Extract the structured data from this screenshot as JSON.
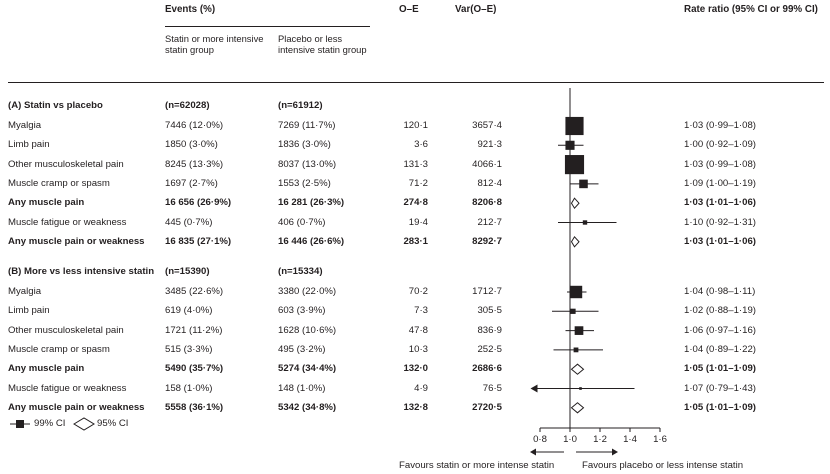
{
  "header": {
    "events": "Events (%)",
    "oe": "O–E",
    "var": "Var(O–E)",
    "rate_ratio": "Rate ratio (95% CI or 99% CI)",
    "group1": "Statin or more intensive statin group",
    "group2": "Placebo or less intensive statin group"
  },
  "legend": {
    "ci99": "99% CI",
    "ci95": "95% CI"
  },
  "chart_data": {
    "type": "forest",
    "x_axis": {
      "ticks": [
        "0·8",
        "1·0",
        "1·2",
        "1·4",
        "1·6"
      ],
      "tick_values": [
        0.8,
        1.0,
        1.2,
        1.4,
        1.6
      ],
      "range": [
        0.8,
        1.6
      ],
      "reference": 1.0
    },
    "favours_left": "Favours statin or more intense statin",
    "favours_right": "Favours placebo or less intense statin",
    "sections": [
      {
        "title": "(A) Statin vs placebo",
        "n1": "(n=62028)",
        "n2": "(n=61912)",
        "rows": [
          {
            "label": "Myalgia",
            "ev1": "7446 (12·0%)",
            "ev2": "7269 (11·7%)",
            "oe": "120·1",
            "var": "3657·4",
            "rr_text": "1·03 (0·99–1·08)",
            "rr": 1.03,
            "lo": 0.99,
            "hi": 1.08,
            "bold": false,
            "marker": "square",
            "weight": 3657.4
          },
          {
            "label": "Limb pain",
            "ev1": "1850 (3·0%)",
            "ev2": "1836 (3·0%)",
            "oe": "3·6",
            "var": "921·3",
            "rr_text": "1·00 (0·92–1·09)",
            "rr": 1.0,
            "lo": 0.92,
            "hi": 1.09,
            "bold": false,
            "marker": "square",
            "weight": 921.3
          },
          {
            "label": "Other musculoskeletal pain",
            "ev1": "8245 (13·3%)",
            "ev2": "8037 (13·0%)",
            "oe": "131·3",
            "var": "4066·1",
            "rr_text": "1·03 (0·99–1·08)",
            "rr": 1.03,
            "lo": 0.99,
            "hi": 1.08,
            "bold": false,
            "marker": "square",
            "weight": 4066.1
          },
          {
            "label": "Muscle cramp or spasm",
            "ev1": "1697 (2·7%)",
            "ev2": "1553 (2·5%)",
            "oe": "71·2",
            "var": "812·4",
            "rr_text": "1·09 (1·00–1·19)",
            "rr": 1.09,
            "lo": 1.0,
            "hi": 1.19,
            "bold": false,
            "marker": "square",
            "weight": 812.4
          },
          {
            "label": "Any muscle pain",
            "ev1": "16 656 (26·9%)",
            "ev2": "16 281 (26·3%)",
            "oe": "274·8",
            "var": "8206·8",
            "rr_text": "1·03 (1·01–1·06)",
            "rr": 1.03,
            "lo": 1.01,
            "hi": 1.06,
            "bold": true,
            "marker": "diamond",
            "weight": 8206.8
          },
          {
            "label": "Muscle fatigue or weakness",
            "ev1": "445 (0·7%)",
            "ev2": "406 (0·7%)",
            "oe": "19·4",
            "var": "212·7",
            "rr_text": "1·10 (0·92–1·31)",
            "rr": 1.1,
            "lo": 0.92,
            "hi": 1.31,
            "bold": false,
            "marker": "square",
            "weight": 212.7
          },
          {
            "label": "Any muscle pain or weakness",
            "ev1": "16 835 (27·1%)",
            "ev2": "16 446 (26·6%)",
            "oe": "283·1",
            "var": "8292·7",
            "rr_text": "1·03 (1·01–1·06)",
            "rr": 1.03,
            "lo": 1.01,
            "hi": 1.06,
            "bold": true,
            "marker": "diamond",
            "weight": 8292.7
          }
        ]
      },
      {
        "title": "(B) More vs less intensive statin",
        "n1": "(n=15390)",
        "n2": "(n=15334)",
        "rows": [
          {
            "label": "Myalgia",
            "ev1": "3485 (22·6%)",
            "ev2": "3380 (22·0%)",
            "oe": "70·2",
            "var": "1712·7",
            "rr_text": "1·04 (0·98–1·11)",
            "rr": 1.04,
            "lo": 0.98,
            "hi": 1.11,
            "bold": false,
            "marker": "square",
            "weight": 1712.7
          },
          {
            "label": "Limb pain",
            "ev1": "619 (4·0%)",
            "ev2": "603 (3·9%)",
            "oe": "7·3",
            "var": "305·5",
            "rr_text": "1·02 (0·88–1·19)",
            "rr": 1.02,
            "lo": 0.88,
            "hi": 1.19,
            "bold": false,
            "marker": "square",
            "weight": 305.5
          },
          {
            "label": "Other musculoskeletal pain",
            "ev1": "1721 (11·2%)",
            "ev2": "1628 (10·6%)",
            "oe": "47·8",
            "var": "836·9",
            "rr_text": "1·06 (0·97–1·16)",
            "rr": 1.06,
            "lo": 0.97,
            "hi": 1.16,
            "bold": false,
            "marker": "square",
            "weight": 836.9
          },
          {
            "label": "Muscle cramp or spasm",
            "ev1": "515 (3·3%)",
            "ev2": "495 (3·2%)",
            "oe": "10·3",
            "var": "252·5",
            "rr_text": "1·04 (0·89–1·22)",
            "rr": 1.04,
            "lo": 0.89,
            "hi": 1.22,
            "bold": false,
            "marker": "square",
            "weight": 252.5
          },
          {
            "label": "Any muscle pain",
            "ev1": "5490 (35·7%)",
            "ev2": "5274 (34·4%)",
            "oe": "132·0",
            "var": "2686·6",
            "rr_text": "1·05 (1·01–1·09)",
            "rr": 1.05,
            "lo": 1.01,
            "hi": 1.09,
            "bold": true,
            "marker": "diamond",
            "weight": 2686.6
          },
          {
            "label": "Muscle fatigue or weakness",
            "ev1": "158 (1·0%)",
            "ev2": "148 (1·0%)",
            "oe": "4·9",
            "var": "76·5",
            "rr_text": "1·07 (0·79–1·43)",
            "rr": 1.07,
            "lo": 0.79,
            "hi": 1.43,
            "bold": false,
            "marker": "square",
            "weight": 76.5
          },
          {
            "label": "Any muscle pain or weakness",
            "ev1": "5558 (36·1%)",
            "ev2": "5342 (34·8%)",
            "oe": "132·8",
            "var": "2720·5",
            "rr_text": "1·05 (1·01–1·09)",
            "rr": 1.05,
            "lo": 1.01,
            "hi": 1.09,
            "bold": true,
            "marker": "diamond",
            "weight": 2720.5
          }
        ]
      }
    ]
  }
}
